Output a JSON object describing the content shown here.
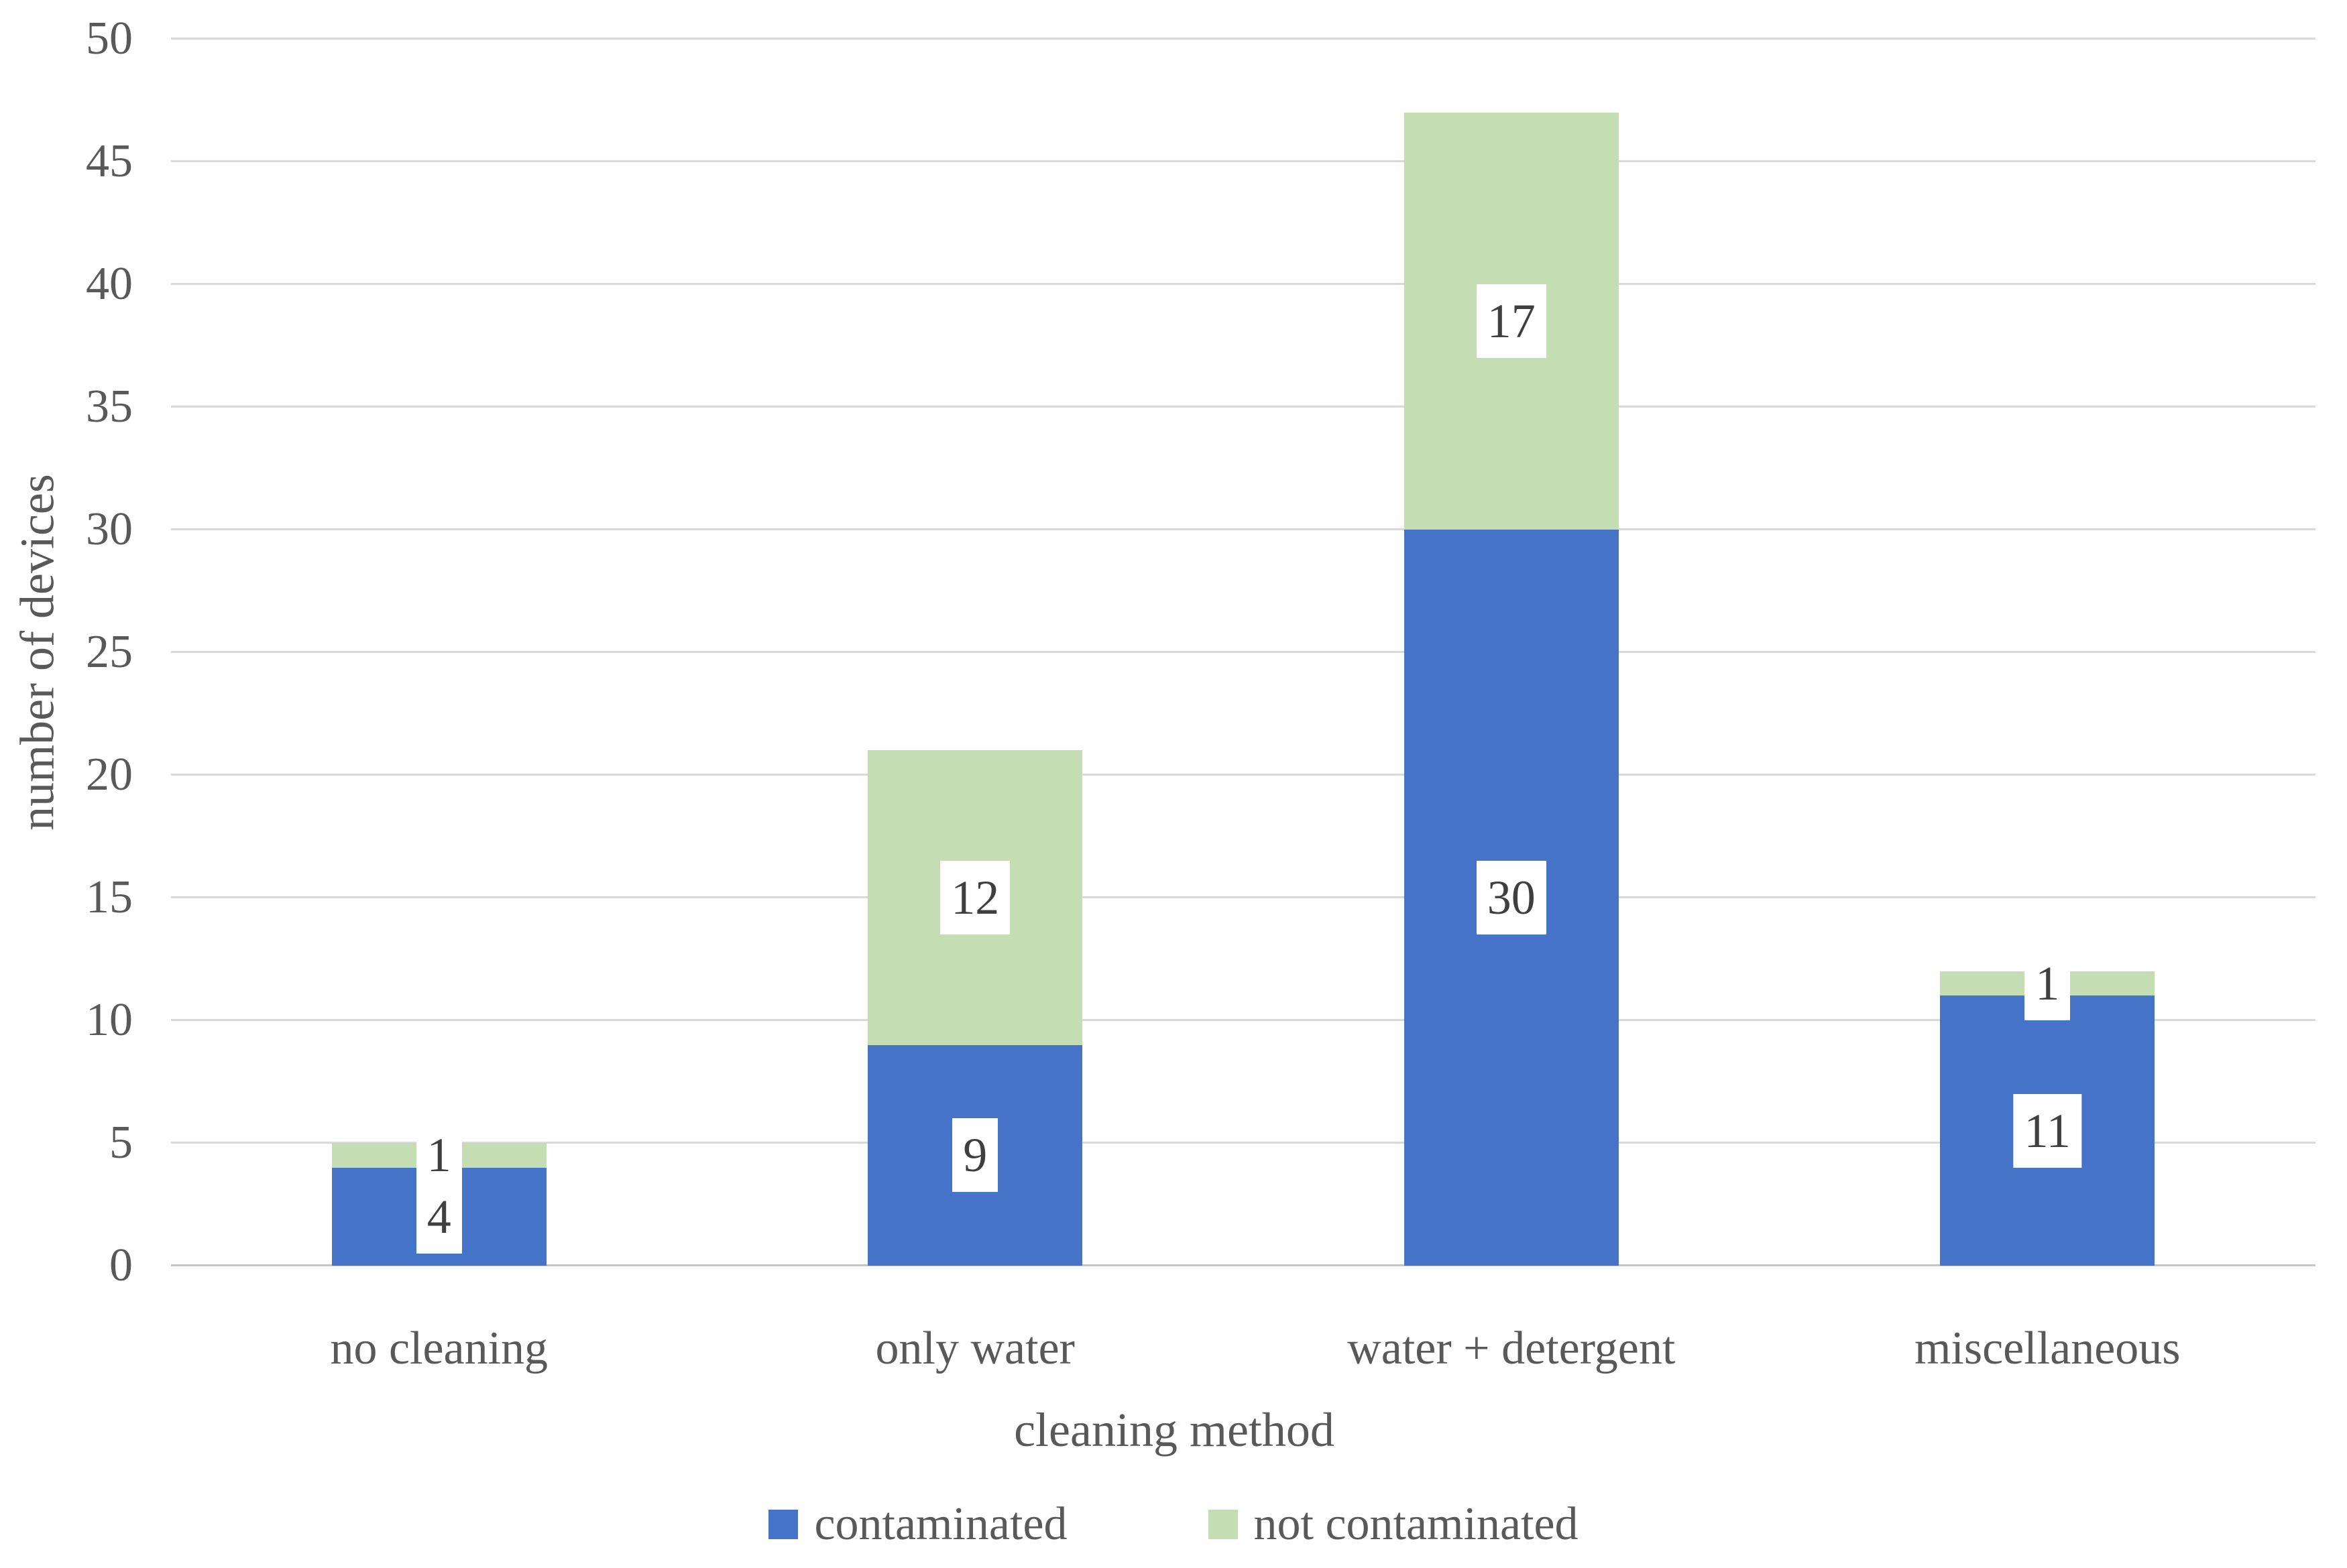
{
  "chart_data": {
    "type": "bar",
    "stacked": true,
    "title": "",
    "categories": [
      "no cleaning",
      "only water",
      "water + detergent",
      "miscellaneous"
    ],
    "series": [
      {
        "name": "contaminated",
        "color": "#4573C8",
        "values": [
          4,
          9,
          30,
          11
        ]
      },
      {
        "name": "not contaminated",
        "color": "#C4DDB2",
        "values": [
          1,
          12,
          17,
          1
        ]
      }
    ],
    "totals": [
      5,
      21,
      47,
      12
    ],
    "xlabel": "cleaning method",
    "ylabel": "number of devices",
    "ylim": [
      0,
      50
    ],
    "yticks": [
      0,
      5,
      10,
      15,
      20,
      25,
      30,
      35,
      40,
      45,
      50
    ],
    "grid": true,
    "data_labels": true,
    "legend_position": "bottom"
  },
  "colors": {
    "gridline": "#D9D9D9",
    "axis_line": "#C6C6C6",
    "tick_text": "#595959",
    "data_label_text": "#3F3F3F",
    "label_box_bg": "#FFFFFF"
  }
}
